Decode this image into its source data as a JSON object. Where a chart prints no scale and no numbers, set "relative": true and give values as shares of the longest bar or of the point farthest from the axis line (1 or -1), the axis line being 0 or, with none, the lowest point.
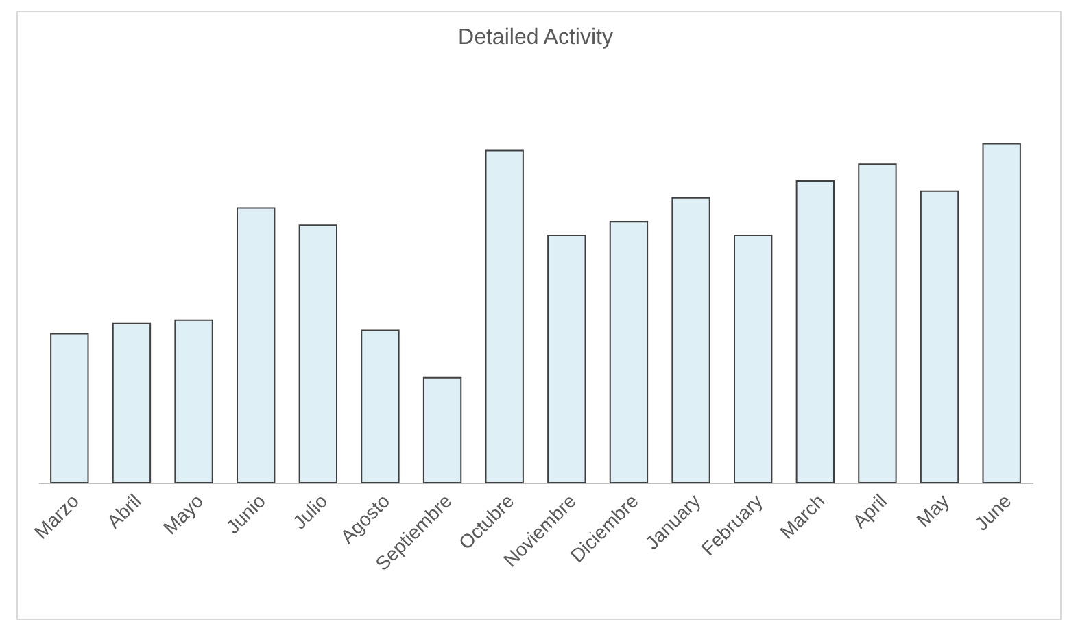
{
  "chart_data": {
    "type": "bar",
    "title": "Detailed Activity",
    "relative": true,
    "color": "#deeff5",
    "categories": [
      "Marzo",
      "Abril",
      "Mayo",
      "Junio",
      "Julio",
      "Agosto",
      "Septiembre",
      "Octubre",
      "Noviembre",
      "Diciembre",
      "January",
      "February",
      "March",
      "April",
      "May",
      "June"
    ],
    "values": [
      0.44,
      0.47,
      0.48,
      0.81,
      0.76,
      0.45,
      0.31,
      0.98,
      0.73,
      0.77,
      0.84,
      0.73,
      0.89,
      0.94,
      0.86,
      1
    ]
  }
}
